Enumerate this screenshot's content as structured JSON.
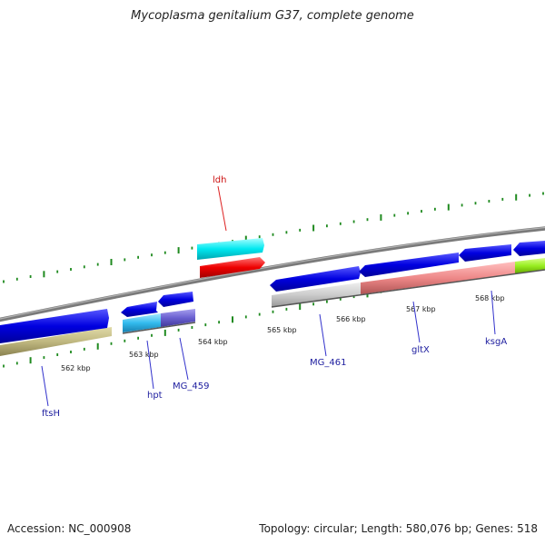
{
  "title": "Mycoplasma genitalium G37, complete genome",
  "footer": {
    "accession": "Accession: NC_000908",
    "summary": "Topology: circular; Length: 580,076 bp; Genes: 518"
  },
  "colors": {
    "backbone": "#808080",
    "tick": "#1f8a1f",
    "label_blue": "#2020a0",
    "label_red": "#cc1111",
    "line_blue": "#3333cc",
    "line_red": "#dd2222"
  },
  "kbp_labels": [
    "562 kbp",
    "563 kbp",
    "564 kbp",
    "565 kbp",
    "566 kbp",
    "567 kbp",
    "568 kbp"
  ],
  "genes": [
    {
      "name": "ftsH",
      "color": "#0000ee"
    },
    {
      "name": "hpt",
      "color": "#0000ee"
    },
    {
      "name": "MG_459",
      "color": "#0000ee"
    },
    {
      "name": "ldh",
      "color": "#00e5ee"
    },
    {
      "name": "MG_461",
      "color": "#0000ee"
    },
    {
      "name": "gltX",
      "color": "#0000ee"
    },
    {
      "name": "ksgA",
      "color": "#0000ee"
    }
  ]
}
